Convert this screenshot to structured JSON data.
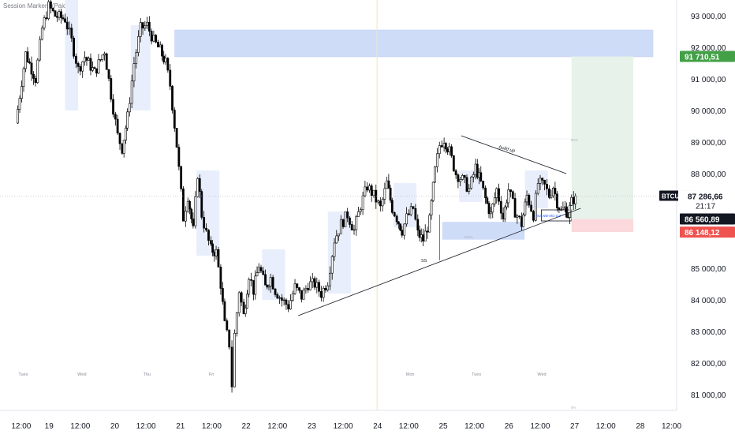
{
  "indicator": "Session Markers (Paid)",
  "chart_data": {
    "type": "candlestick",
    "symbol": "BTCUSDT",
    "ylim": [
      80500,
      93500
    ],
    "y_ticks": [
      {
        "label": "93 000,00",
        "value": 93000
      },
      {
        "label": "92 000,00",
        "value": 92000
      },
      {
        "label": "91 000,00",
        "value": 91000
      },
      {
        "label": "90 000,00",
        "value": 90000
      },
      {
        "label": "89 000,00",
        "value": 89000
      },
      {
        "label": "88 000,00",
        "value": 88000
      },
      {
        "label": "85 000,00",
        "value": 85000
      },
      {
        "label": "84 000,00",
        "value": 84000
      },
      {
        "label": "83 000,00",
        "value": 83000
      },
      {
        "label": "82 000,00",
        "value": 82000
      },
      {
        "label": "81 000,00",
        "value": 81000
      }
    ],
    "x_ticks": [
      {
        "label": "12:00",
        "pos": 0.1
      },
      {
        "label": "19",
        "pos": 0.5
      },
      {
        "label": "12:00",
        "pos": 1.0
      },
      {
        "label": "20",
        "pos": 1.5
      },
      {
        "label": "12:00",
        "pos": 2.0
      },
      {
        "label": "21",
        "pos": 2.5
      },
      {
        "label": "12:00",
        "pos": 3.0
      },
      {
        "label": "22",
        "pos": 3.5
      },
      {
        "label": "12:00",
        "pos": 4.0
      },
      {
        "label": "23",
        "pos": 4.5
      },
      {
        "label": "12:00",
        "pos": 5.0
      },
      {
        "label": "24",
        "pos": 5.5
      },
      {
        "label": "12:00",
        "pos": 6.0
      },
      {
        "label": "25",
        "pos": 6.5
      },
      {
        "label": "12:00",
        "pos": 7.0
      },
      {
        "label": "26",
        "pos": 7.5
      },
      {
        "label": "12:00",
        "pos": 8.0
      },
      {
        "label": "27",
        "pos": 8.5
      },
      {
        "label": "12:00",
        "pos": 9.0
      },
      {
        "label": "28",
        "pos": 9.5
      },
      {
        "label": "12:00",
        "pos": 10.0
      }
    ],
    "day_labels": [
      {
        "label": "Tues",
        "pos": 0.1
      },
      {
        "label": "Wed",
        "pos": 1.0
      },
      {
        "label": "Thu",
        "pos": 2.0
      },
      {
        "label": "Fri",
        "pos": 3.0
      },
      {
        "label": "Mon",
        "pos": 6.0
      },
      {
        "label": "Tues",
        "pos": 7.0
      },
      {
        "label": "Wed",
        "pos": 8.0
      }
    ],
    "price_path": [
      [
        0.0,
        89600
      ],
      [
        0.15,
        91800
      ],
      [
        0.3,
        91000
      ],
      [
        0.4,
        92600
      ],
      [
        0.5,
        93300
      ],
      [
        0.6,
        93000
      ],
      [
        0.75,
        92900
      ],
      [
        0.85,
        92200
      ],
      [
        0.95,
        91300
      ],
      [
        1.05,
        91700
      ],
      [
        1.2,
        91200
      ],
      [
        1.35,
        91900
      ],
      [
        1.45,
        90500
      ],
      [
        1.55,
        89200
      ],
      [
        1.62,
        88800
      ],
      [
        1.7,
        89800
      ],
      [
        1.8,
        91500
      ],
      [
        1.9,
        92600
      ],
      [
        2.0,
        92700
      ],
      [
        2.1,
        92200
      ],
      [
        2.2,
        91900
      ],
      [
        2.28,
        91500
      ],
      [
        2.35,
        90800
      ],
      [
        2.45,
        88900
      ],
      [
        2.55,
        86600
      ],
      [
        2.62,
        87300
      ],
      [
        2.7,
        86200
      ],
      [
        2.77,
        88000
      ],
      [
        2.83,
        86700
      ],
      [
        2.9,
        86100
      ],
      [
        2.97,
        85600
      ],
      [
        3.05,
        85500
      ],
      [
        3.12,
        84500
      ],
      [
        3.18,
        83200
      ],
      [
        3.25,
        82600
      ],
      [
        3.29,
        81300
      ],
      [
        3.33,
        82900
      ],
      [
        3.4,
        84300
      ],
      [
        3.47,
        83500
      ],
      [
        3.55,
        84800
      ],
      [
        3.62,
        84300
      ],
      [
        3.7,
        85100
      ],
      [
        3.8,
        84400
      ],
      [
        3.88,
        84700
      ],
      [
        3.95,
        84300
      ],
      [
        4.05,
        84000
      ],
      [
        4.15,
        83800
      ],
      [
        4.25,
        84400
      ],
      [
        4.35,
        84100
      ],
      [
        4.45,
        84500
      ],
      [
        4.55,
        84500
      ],
      [
        4.65,
        84200
      ],
      [
        4.75,
        84600
      ],
      [
        4.85,
        85900
      ],
      [
        4.95,
        86400
      ],
      [
        5.05,
        86700
      ],
      [
        5.15,
        86200
      ],
      [
        5.25,
        87000
      ],
      [
        5.35,
        87600
      ],
      [
        5.45,
        87300
      ],
      [
        5.55,
        86900
      ],
      [
        5.65,
        87700
      ],
      [
        5.73,
        86900
      ],
      [
        5.8,
        86600
      ],
      [
        5.88,
        86200
      ],
      [
        5.95,
        86600
      ],
      [
        6.05,
        86900
      ],
      [
        6.12,
        86100
      ],
      [
        6.2,
        85900
      ],
      [
        6.3,
        86500
      ],
      [
        6.38,
        88100
      ],
      [
        6.45,
        88900
      ],
      [
        6.52,
        89100
      ],
      [
        6.6,
        88700
      ],
      [
        6.7,
        88000
      ],
      [
        6.8,
        87800
      ],
      [
        6.9,
        87500
      ],
      [
        7.0,
        88200
      ],
      [
        7.08,
        87700
      ],
      [
        7.15,
        87200
      ],
      [
        7.23,
        86700
      ],
      [
        7.32,
        87500
      ],
      [
        7.42,
        86600
      ],
      [
        7.5,
        87500
      ],
      [
        7.6,
        86800
      ],
      [
        7.7,
        86400
      ],
      [
        7.78,
        87300
      ],
      [
        7.88,
        86700
      ],
      [
        7.95,
        87700
      ],
      [
        8.05,
        87600
      ],
      [
        8.12,
        87300
      ],
      [
        8.18,
        87600
      ],
      [
        8.24,
        87100
      ],
      [
        8.3,
        86800
      ],
      [
        8.36,
        86900
      ],
      [
        8.41,
        86700
      ],
      [
        8.46,
        87100
      ],
      [
        8.52,
        87287
      ]
    ],
    "zones": [
      {
        "kind": "supply",
        "x": [
          2.42,
          9.7
        ],
        "y": [
          91700,
          92550
        ]
      },
      {
        "kind": "demand",
        "x": [
          6.5,
          7.74
        ],
        "y": [
          85920,
          86460
        ]
      },
      {
        "kind": "bu_box",
        "x": [
          8.0,
          8.46
        ],
        "y": [
          86500,
          86850
        ]
      }
    ],
    "session_shading": [
      {
        "x": [
          0.75,
          0.95
        ],
        "y": [
          90000,
          93500
        ]
      },
      {
        "x": [
          1.75,
          2.05
        ],
        "y": [
          90000,
          92700
        ]
      },
      {
        "x": [
          2.75,
          3.1
        ],
        "y": [
          85400,
          88100
        ]
      },
      {
        "x": [
          3.75,
          4.1
        ],
        "y": [
          84000,
          85600
        ]
      },
      {
        "x": [
          4.75,
          5.1
        ],
        "y": [
          84200,
          86800
        ]
      },
      {
        "x": [
          5.75,
          6.1
        ],
        "y": [
          86300,
          87700
        ]
      },
      {
        "x": [
          6.75,
          7.1
        ],
        "y": [
          87100,
          88100
        ]
      },
      {
        "x": [
          7.75,
          8.1
        ],
        "y": [
          86900,
          88100
        ]
      }
    ],
    "lines": [
      {
        "name": "trendline",
        "from": [
          4.3,
          83500
        ],
        "to": [
          8.6,
          86900
        ]
      },
      {
        "name": "build-up",
        "from": [
          6.78,
          89200
        ],
        "to": [
          8.38,
          88000
        ]
      }
    ],
    "annotations": {
      "build_up_label": "build up",
      "ss_label": "SS",
      "bu_label": "BU-WB-MG-DZ",
      "tick_90": "90%",
      "tick_0": "0%",
      "tick_100": "100%"
    },
    "position": {
      "x": [
        8.46,
        9.4
      ],
      "entry": 86561,
      "target": 91711,
      "stop": 86148,
      "target_label": "91 710,51",
      "entry_label": "86 560,89",
      "stop_label": "86 148,12",
      "colors": {
        "profit": "#e7f3ea",
        "loss": "#fbd9dc",
        "target_badge": "#43a047",
        "stop_badge": "#ef5350",
        "entry_badge": "#131722"
      }
    },
    "current": {
      "symbol": "BTCUSDT",
      "price_label": "87 286,66",
      "countdown": "21:17",
      "price": 87287
    },
    "vertical_marker": 5.5,
    "colors": {
      "up": "#ffffff",
      "down": "#000000",
      "wick": "#000000",
      "zone": "#cfdcf8",
      "session": "#e8eefc",
      "axis_text": "#131722",
      "muted": "#8a8e98"
    }
  }
}
